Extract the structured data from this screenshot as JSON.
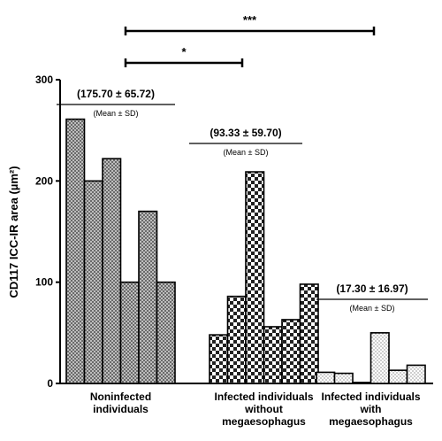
{
  "chart_data": {
    "type": "bar",
    "title": "",
    "ylabel": "CD117 ICC-IR area (µm²)",
    "ylim": [
      0,
      300
    ],
    "yticks": [
      0,
      100,
      200,
      300
    ],
    "groups": [
      {
        "name_lines": [
          "Noninfected",
          "individuals"
        ],
        "stat": "(175.70 ± 65.72)",
        "stat_sub": "(Mean ± SD)",
        "fill": "crosshatch",
        "values": [
          261,
          200,
          222,
          100,
          170,
          100
        ]
      },
      {
        "name_lines": [
          "Infected individuals",
          "without",
          "megaesophagus"
        ],
        "stat": "(93.33 ± 59.70)",
        "stat_sub": "(Mean ± SD)",
        "fill": "checker",
        "values": [
          48,
          86,
          209,
          56,
          63,
          98
        ]
      },
      {
        "name_lines": [
          "Infected individuals",
          "with",
          "megaesophagus"
        ],
        "stat": "(17.30 ± 16.97)",
        "stat_sub": "(Mean ± SD)",
        "fill": "dots",
        "values": [
          11,
          10,
          1,
          50,
          13,
          18
        ]
      }
    ],
    "significance": [
      {
        "from_group": 0,
        "to_group": 1,
        "label": "*"
      },
      {
        "from_group": 0,
        "to_group": 2,
        "label": "***"
      }
    ]
  }
}
